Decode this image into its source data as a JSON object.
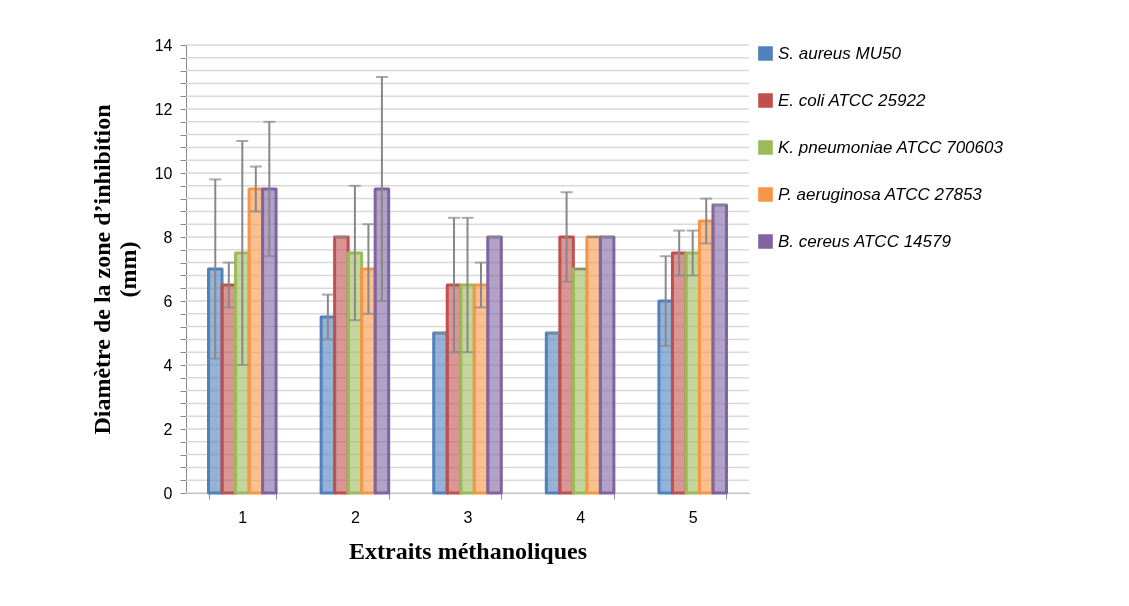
{
  "chart_data": {
    "type": "bar",
    "xlabel": "Extraits méthanoliques",
    "ylabel": "Diamètre de la zone d’inhibition (mm)",
    "categories": [
      "1",
      "2",
      "3",
      "4",
      "5"
    ],
    "series": [
      {
        "name": "S. aureus MU50",
        "color": "#4f81bd",
        "values": [
          7,
          5.5,
          5,
          5,
          6
        ],
        "errors": [
          2.8,
          0.7,
          0,
          0,
          1.4
        ]
      },
      {
        "name": "E. coli ATCC 25922",
        "color": "#c0504d",
        "values": [
          6.5,
          8,
          6.5,
          8,
          7.5
        ],
        "errors": [
          0.7,
          0,
          2.1,
          1.4,
          0.7
        ]
      },
      {
        "name": "K. pneumoniae ATCC 700603",
        "color": "#9bbb59",
        "values": [
          7.5,
          7.5,
          6.5,
          7,
          7.5
        ],
        "errors": [
          3.5,
          2.1,
          2.1,
          0,
          0.7
        ]
      },
      {
        "name": "P. aeruginosa ATCC 27853",
        "color": "#f79646",
        "values": [
          9.5,
          7,
          6.5,
          8,
          8.5
        ],
        "errors": [
          0.7,
          1.4,
          0.7,
          0,
          0.7
        ]
      },
      {
        "name": "B. cereus ATCC 14579",
        "color": "#8064a2",
        "values": [
          9.5,
          9.5,
          8,
          8,
          9
        ],
        "errors": [
          2.1,
          3.5,
          0,
          0,
          0
        ]
      }
    ],
    "ylim": [
      0,
      14
    ],
    "yticks": [
      0,
      {
        "value": 0.4,
        "label": null
      },
      {
        "value": 0.8,
        "label": null
      },
      {
        "value": 1.2,
        "label": null
      },
      {
        "value": 1.6,
        "label": null
      },
      2,
      {
        "value": 2.4,
        "label": null
      },
      {
        "value": 2.8,
        "label": null
      },
      {
        "value": 3.2,
        "label": null
      },
      {
        "value": 3.6,
        "label": null
      },
      4,
      {
        "value": 4.4,
        "label": null
      },
      {
        "value": 4.8,
        "label": null
      },
      {
        "value": 5.2,
        "label": null
      },
      {
        "value": 5.6,
        "label": null
      },
      6,
      {
        "value": 6.4,
        "label": null
      },
      {
        "value": 6.8,
        "label": null
      },
      {
        "value": 7.2,
        "label": null
      },
      {
        "value": 7.6,
        "label": null
      },
      8,
      {
        "value": 8.4,
        "label": null
      },
      {
        "value": 8.8,
        "label": null
      },
      {
        "value": 9.2,
        "label": null
      },
      {
        "value": 9.6,
        "label": null
      },
      10,
      {
        "value": 10.4,
        "label": null
      },
      {
        "value": 10.8,
        "label": null
      },
      {
        "value": 11.2,
        "label": null
      },
      {
        "value": 11.6,
        "label": null
      },
      12,
      {
        "value": 12.4,
        "label": null
      },
      {
        "value": 12.8,
        "label": null
      },
      {
        "value": 13.2,
        "label": null
      },
      {
        "value": 13.6,
        "label": null
      },
      14
    ],
    "grid": "y",
    "legend": "right"
  }
}
